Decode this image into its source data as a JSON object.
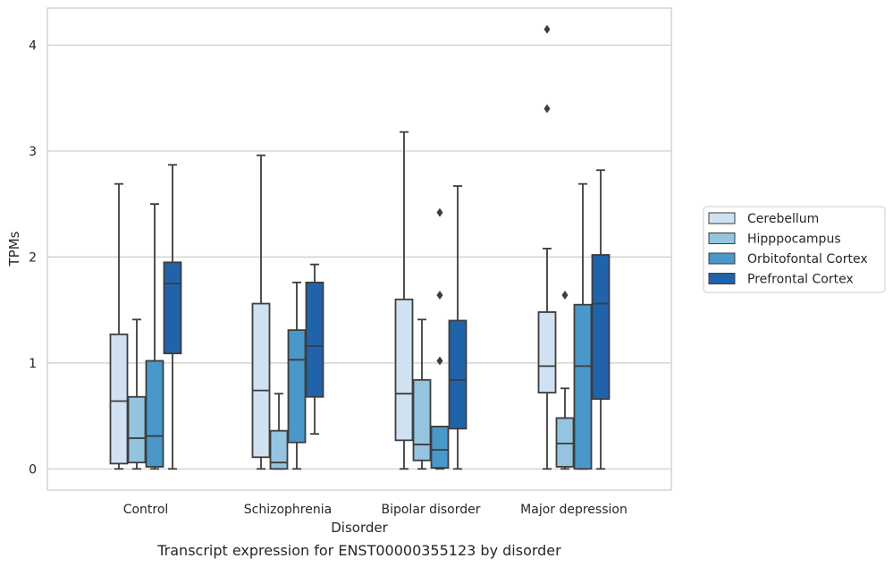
{
  "caption": "Transcript expression for ENST00000355123 by disorder",
  "chart_data": {
    "type": "boxplot",
    "title": "",
    "xlabel": "Disorder",
    "ylabel": "TPMs",
    "ylim": [
      -0.2,
      4.35
    ],
    "yticks": [
      0,
      1,
      2,
      3,
      4
    ],
    "grid": "horizontal",
    "legend_placement": "right",
    "categories": [
      "Control",
      "Schizophrenia",
      "Bipolar disorder",
      "Major depression"
    ],
    "series": [
      {
        "name": "Cerebellum",
        "color": "#d0e1f2",
        "boxes": [
          {
            "whislo": 0,
            "q1": 0.05,
            "med": 0.64,
            "q3": 1.27,
            "whishi": 2.69,
            "fliers": []
          },
          {
            "whislo": 0,
            "q1": 0.11,
            "med": 0.74,
            "q3": 1.56,
            "whishi": 2.96,
            "fliers": []
          },
          {
            "whislo": 0,
            "q1": 0.27,
            "med": 0.71,
            "q3": 1.6,
            "whishi": 3.18,
            "fliers": []
          },
          {
            "whislo": 0,
            "q1": 0.72,
            "med": 0.97,
            "q3": 1.48,
            "whishi": 2.08,
            "fliers": [
              3.4,
              4.15
            ]
          }
        ]
      },
      {
        "name": "Hipppocampus",
        "color": "#94c4df",
        "boxes": [
          {
            "whislo": 0,
            "q1": 0.06,
            "med": 0.29,
            "q3": 0.68,
            "whishi": 1.41,
            "fliers": []
          },
          {
            "whislo": 0,
            "q1": 0.0,
            "med": 0.06,
            "q3": 0.36,
            "whishi": 0.71,
            "fliers": []
          },
          {
            "whislo": 0,
            "q1": 0.08,
            "med": 0.23,
            "q3": 0.84,
            "whishi": 1.41,
            "fliers": []
          },
          {
            "whislo": 0,
            "q1": 0.02,
            "med": 0.24,
            "q3": 0.48,
            "whishi": 0.76,
            "fliers": [
              1.64
            ]
          }
        ]
      },
      {
        "name": "Orbitofontal Cortex",
        "color": "#4a98c9",
        "boxes": [
          {
            "whislo": 0,
            "q1": 0.02,
            "med": 0.31,
            "q3": 1.02,
            "whishi": 2.5,
            "fliers": []
          },
          {
            "whislo": 0,
            "q1": 0.25,
            "med": 1.03,
            "q3": 1.31,
            "whishi": 1.76,
            "fliers": []
          },
          {
            "whislo": 0,
            "q1": 0.01,
            "med": 0.18,
            "q3": 0.4,
            "whishi": 0.4,
            "fliers": [
              1.02,
              1.64,
              2.42
            ]
          },
          {
            "whislo": 0,
            "q1": 0.0,
            "med": 0.97,
            "q3": 1.55,
            "whishi": 2.69,
            "fliers": []
          }
        ]
      },
      {
        "name": "Prefrontal Cortex",
        "color": "#2163aa",
        "boxes": [
          {
            "whislo": 0,
            "q1": 1.09,
            "med": 1.75,
            "q3": 1.95,
            "whishi": 2.87,
            "fliers": []
          },
          {
            "whislo": 0.33,
            "q1": 0.68,
            "med": 1.16,
            "q3": 1.76,
            "whishi": 1.93,
            "fliers": []
          },
          {
            "whislo": 0,
            "q1": 0.38,
            "med": 0.84,
            "q3": 1.4,
            "whishi": 2.67,
            "fliers": []
          },
          {
            "whislo": 0,
            "q1": 0.66,
            "med": 1.56,
            "q3": 2.02,
            "whishi": 2.82,
            "fliers": []
          }
        ]
      }
    ]
  }
}
